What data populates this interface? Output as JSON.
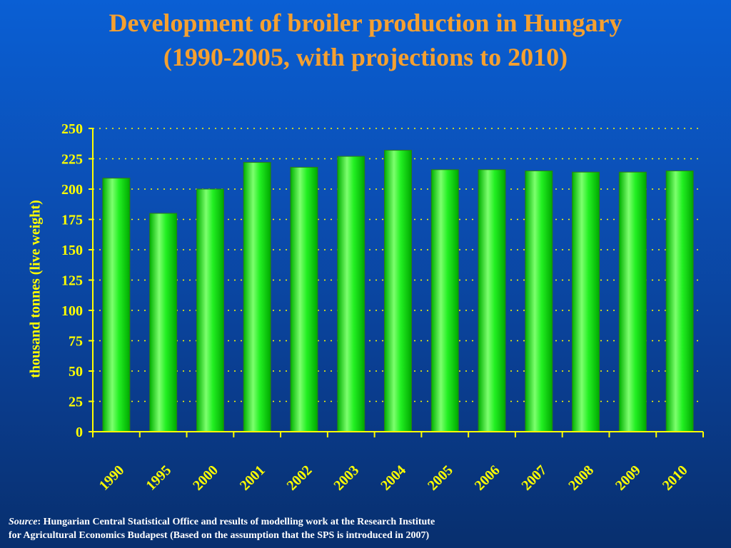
{
  "title_line1": "Development of broiler production in Hungary",
  "title_line2": "(1990-2005, with projections to 2010)",
  "source": {
    "label": "Source",
    "line1": ": Hungarian Central Statistical Office and results of modelling work at the Research Institute",
    "line2": "for Agricultural Economics Budapest (Based on the assumption that the SPS is introduced in 2007)"
  },
  "colors": {
    "bar_fill": "#00e000",
    "bar_highlight": "#7dff6e",
    "axis": "#ffff00",
    "grid": "#ffff00",
    "title": "#f5a030",
    "tick_text": "#ffff00"
  },
  "chart_data": {
    "type": "bar",
    "title": "Development of broiler production in Hungary (1990-2005, with projections to 2010)",
    "ylabel": "thousand tonnes (live weight)",
    "xlabel": "",
    "categories": [
      "1990",
      "1995",
      "2000",
      "2001",
      "2002",
      "2003",
      "2004",
      "2005",
      "2006",
      "2007",
      "2008",
      "2009",
      "2010"
    ],
    "values": [
      209,
      180,
      200,
      222,
      218,
      227,
      232,
      216,
      216,
      215,
      214,
      214,
      215
    ],
    "ylim": [
      0,
      250
    ],
    "yticks": [
      0,
      25,
      50,
      75,
      100,
      125,
      150,
      175,
      200,
      225,
      250
    ],
    "grid": true,
    "legend": "none"
  }
}
